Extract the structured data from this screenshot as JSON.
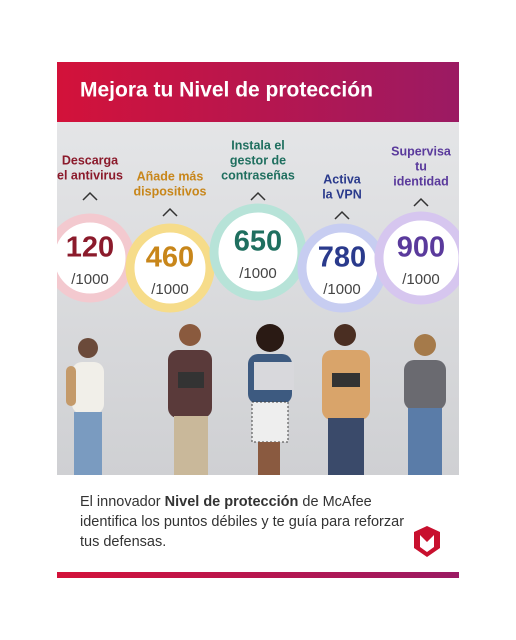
{
  "header": {
    "title": "Mejora tu Nivel de protección"
  },
  "scores": [
    {
      "label": [
        "Descarga",
        "el antivirus"
      ],
      "score": "120",
      "max": "/1000"
    },
    {
      "label": [
        "Añade más",
        "dispositivos"
      ],
      "score": "460",
      "max": "/1000"
    },
    {
      "label": [
        "Instala el",
        "gestor de",
        "contraseñas"
      ],
      "score": "650",
      "max": "/1000"
    },
    {
      "label": [
        "Activa",
        "la VPN"
      ],
      "score": "780",
      "max": "/1000"
    },
    {
      "label": [
        "Supervisa",
        "tu",
        "identidad"
      ],
      "score": "900",
      "max": "/1000"
    }
  ],
  "footer": {
    "before": "El innovador ",
    "bold": "Nivel de protección",
    "after": " de McAfee identifica los puntos débiles y te guía para reforzar tus defensas."
  }
}
